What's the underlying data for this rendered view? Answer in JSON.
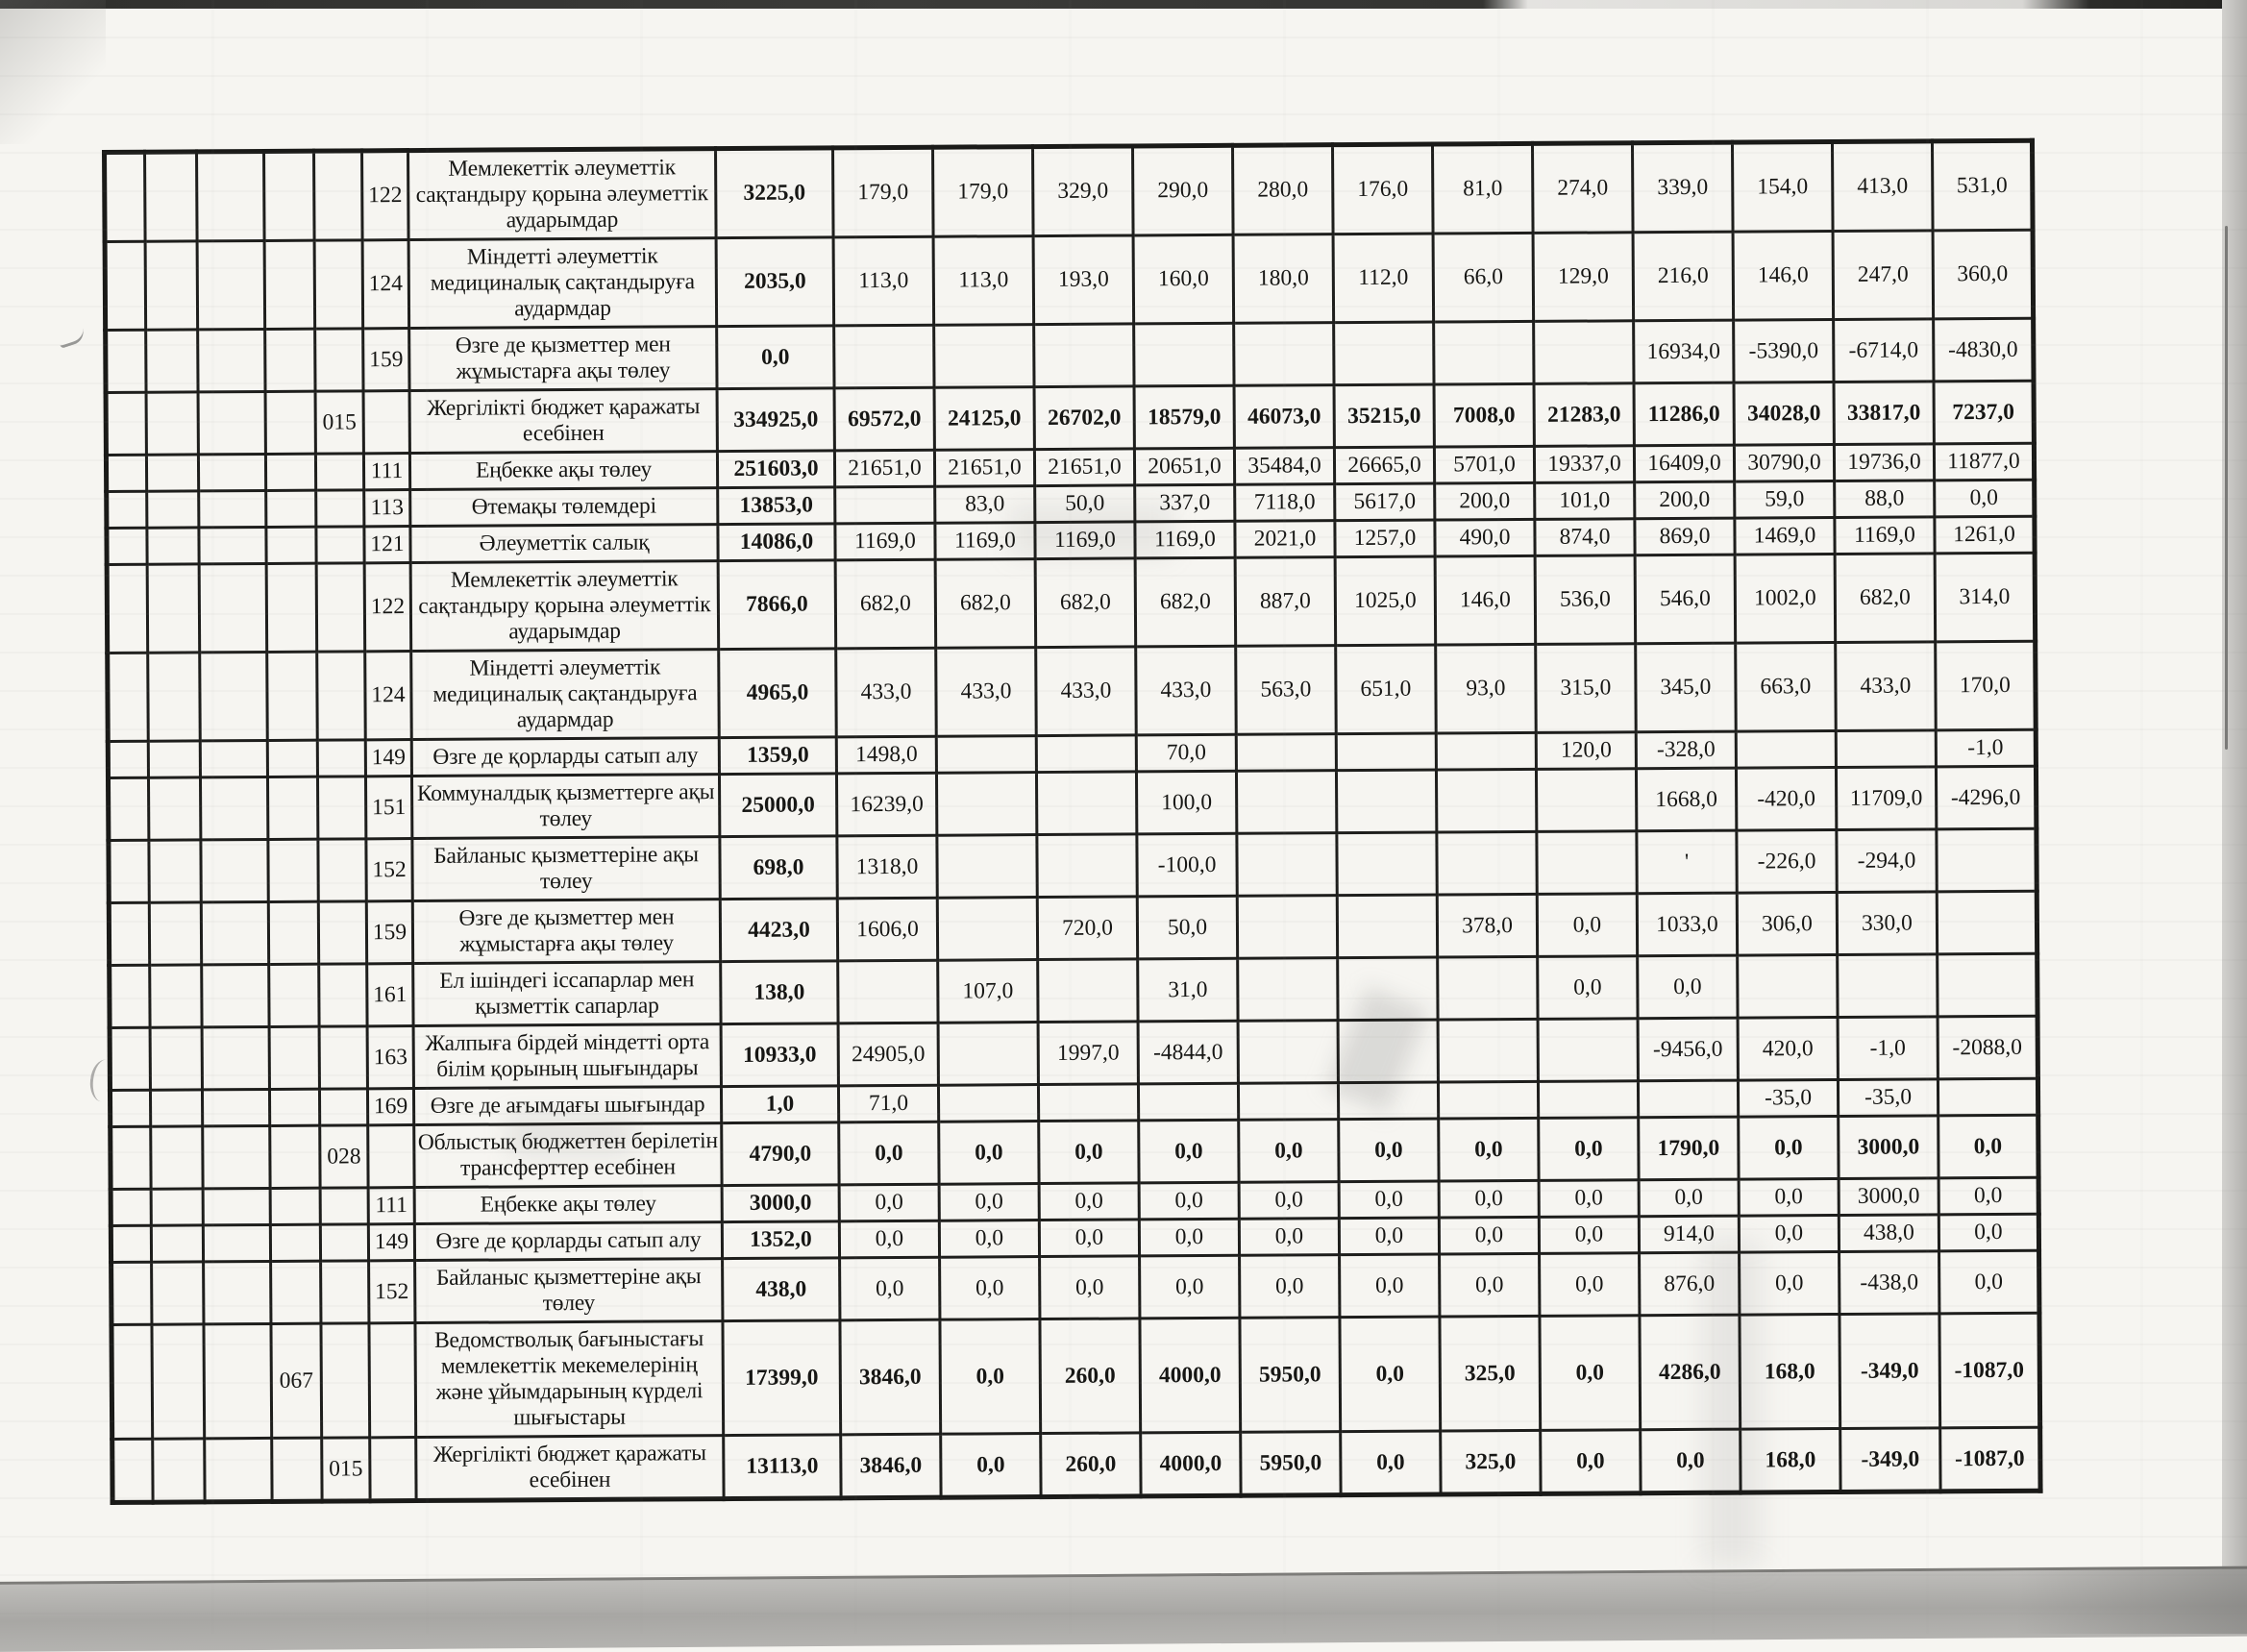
{
  "table": {
    "rows": [
      {
        "program": "",
        "subprogram": "",
        "specific": "122",
        "description": "Мемлекеттік  әлеуметтік сақтандыру қорына әлеуметтік аударымдар",
        "emphasis": "first",
        "values": [
          "3225,0",
          "179,0",
          "179,0",
          "329,0",
          "290,0",
          "280,0",
          "176,0",
          "81,0",
          "274,0",
          "339,0",
          "154,0",
          "413,0",
          "531,0"
        ]
      },
      {
        "program": "",
        "subprogram": "",
        "specific": "124",
        "description": "Міндетті әлеуметтік медициналық сақтандыруға аудармдар",
        "emphasis": "first",
        "values": [
          "2035,0",
          "113,0",
          "113,0",
          "193,0",
          "160,0",
          "180,0",
          "112,0",
          "66,0",
          "129,0",
          "216,0",
          "146,0",
          "247,0",
          "360,0"
        ]
      },
      {
        "program": "",
        "subprogram": "",
        "specific": "159",
        "description": "Өзге де қызметтер мен жұмыстарға ақы төлеу",
        "emphasis": "first",
        "values": [
          "0,0",
          "",
          "",
          "",
          "",
          "",
          "",
          "",
          "",
          "16934,0",
          "-5390,0",
          "-6714,0",
          "-4830,0"
        ]
      },
      {
        "program": "",
        "subprogram": "015",
        "specific": "",
        "description": "Жергілікті бюджет қаражаты есебінен",
        "emphasis": "all",
        "values": [
          "334925,0",
          "69572,0",
          "24125,0",
          "26702,0",
          "18579,0",
          "46073,0",
          "35215,0",
          "7008,0",
          "21283,0",
          "11286,0",
          "34028,0",
          "33817,0",
          "7237,0"
        ]
      },
      {
        "program": "",
        "subprogram": "",
        "specific": "111",
        "description": "Еңбекке ақы төлеу",
        "emphasis": "first",
        "values": [
          "251603,0",
          "21651,0",
          "21651,0",
          "21651,0",
          "20651,0",
          "35484,0",
          "26665,0",
          "5701,0",
          "19337,0",
          "16409,0",
          "30790,0",
          "19736,0",
          "11877,0"
        ]
      },
      {
        "program": "",
        "subprogram": "",
        "specific": "113",
        "description": "Өтемақы төлемдері",
        "emphasis": "first",
        "values": [
          "13853,0",
          "",
          "83,0",
          "50,0",
          "337,0",
          "7118,0",
          "5617,0",
          "200,0",
          "101,0",
          "200,0",
          "59,0",
          "88,0",
          "0,0"
        ]
      },
      {
        "program": "",
        "subprogram": "",
        "specific": "121",
        "description": "Әлеуметтік салық",
        "emphasis": "first",
        "values": [
          "14086,0",
          "1169,0",
          "1169,0",
          "1169,0",
          "1169,0",
          "2021,0",
          "1257,0",
          "490,0",
          "874,0",
          "869,0",
          "1469,0",
          "1169,0",
          "1261,0"
        ]
      },
      {
        "program": "",
        "subprogram": "",
        "specific": "122",
        "description": "Мемлекеттік  әлеуметтік сақтандыру қорына әлеуметтік аударымдар",
        "emphasis": "first",
        "values": [
          "7866,0",
          "682,0",
          "682,0",
          "682,0",
          "682,0",
          "887,0",
          "1025,0",
          "146,0",
          "536,0",
          "546,0",
          "1002,0",
          "682,0",
          "314,0"
        ]
      },
      {
        "program": "",
        "subprogram": "",
        "specific": "124",
        "description": "Міндетті әлеуметтік медициналық сақтандыруға аудармдар",
        "emphasis": "first",
        "values": [
          "4965,0",
          "433,0",
          "433,0",
          "433,0",
          "433,0",
          "563,0",
          "651,0",
          "93,0",
          "315,0",
          "345,0",
          "663,0",
          "433,0",
          "170,0"
        ]
      },
      {
        "program": "",
        "subprogram": "",
        "specific": "149",
        "description": "Өзге де қорларды сатып алу",
        "emphasis": "first",
        "values": [
          "1359,0",
          "1498,0",
          "",
          "",
          "70,0",
          "",
          "",
          "",
          "120,0",
          "-328,0",
          "",
          "",
          "-1,0"
        ]
      },
      {
        "program": "",
        "subprogram": "",
        "specific": "151",
        "description": "Коммуналдық қызметтерге ақы төлеу",
        "emphasis": "first",
        "values": [
          "25000,0",
          "16239,0",
          "",
          "",
          "100,0",
          "",
          "",
          "",
          "",
          "1668,0",
          "-420,0",
          "11709,0",
          "-4296,0"
        ]
      },
      {
        "program": "",
        "subprogram": "",
        "specific": "152",
        "description": "Байланыс қызметтеріне ақы төлеу",
        "emphasis": "first",
        "values": [
          "698,0",
          "1318,0",
          "",
          "",
          "-100,0",
          "",
          "",
          "",
          "",
          "'",
          "-226,0",
          "-294,0",
          ""
        ]
      },
      {
        "program": "",
        "subprogram": "",
        "specific": "159",
        "description": "Өзге де қызметтер мен жұмыстарға ақы төлеу",
        "emphasis": "first",
        "values": [
          "4423,0",
          "1606,0",
          "",
          "720,0",
          "50,0",
          "",
          "",
          "378,0",
          "0,0",
          "1033,0",
          "306,0",
          "330,0",
          ""
        ]
      },
      {
        "program": "",
        "subprogram": "",
        "specific": "161",
        "description": "Ел ішіндегі іссапарлар мен қызметтік сапарлар",
        "emphasis": "first",
        "values": [
          "138,0",
          "",
          "107,0",
          "",
          "31,0",
          "",
          "",
          "",
          "0,0",
          "0,0",
          "",
          "",
          ""
        ]
      },
      {
        "program": "",
        "subprogram": "",
        "specific": "163",
        "description": "Жалпыға бірдей міндетті орта білім қорының шығындары",
        "emphasis": "first",
        "values": [
          "10933,0",
          "24905,0",
          "",
          "1997,0",
          "-4844,0",
          "",
          "",
          "",
          "",
          "-9456,0",
          "420,0",
          "-1,0",
          "-2088,0"
        ]
      },
      {
        "program": "",
        "subprogram": "",
        "specific": "169",
        "description": "Өзге де ағымдағы шығындар",
        "emphasis": "first",
        "values": [
          "1,0",
          "71,0",
          "",
          "",
          "",
          "",
          "",
          "",
          "",
          "",
          "-35,0",
          "-35,0",
          ""
        ]
      },
      {
        "program": "",
        "subprogram": "028",
        "specific": "",
        "description": "Облыстық бюджеттен берілетін трансферттер есебінен",
        "emphasis": "all",
        "values": [
          "4790,0",
          "0,0",
          "0,0",
          "0,0",
          "0,0",
          "0,0",
          "0,0",
          "0,0",
          "0,0",
          "1790,0",
          "0,0",
          "3000,0",
          "0,0"
        ]
      },
      {
        "program": "",
        "subprogram": "",
        "specific": "111",
        "description": "Еңбекке ақы төлеу",
        "emphasis": "first",
        "values": [
          "3000,0",
          "0,0",
          "0,0",
          "0,0",
          "0,0",
          "0,0",
          "0,0",
          "0,0",
          "0,0",
          "0,0",
          "0,0",
          "3000,0",
          "0,0"
        ]
      },
      {
        "program": "",
        "subprogram": "",
        "specific": "149",
        "description": "Өзге де қорларды сатып алу",
        "emphasis": "first",
        "values": [
          "1352,0",
          "0,0",
          "0,0",
          "0,0",
          "0,0",
          "0,0",
          "0,0",
          "0,0",
          "0,0",
          "914,0",
          "0,0",
          "438,0",
          "0,0"
        ]
      },
      {
        "program": "",
        "subprogram": "",
        "specific": "152",
        "description": "Байланыс қызметтеріне ақы төлеу",
        "emphasis": "first",
        "values": [
          "438,0",
          "0,0",
          "0,0",
          "0,0",
          "0,0",
          "0,0",
          "0,0",
          "0,0",
          "0,0",
          "876,0",
          "0,0",
          "-438,0",
          "0,0"
        ]
      },
      {
        "program": "067",
        "subprogram": "",
        "specific": "",
        "description": "Ведомстволық бағыныстағы мемлекеттік мекемелерінің және ұйымдарының күрделі шығыстары",
        "emphasis": "all",
        "values": [
          "17399,0",
          "3846,0",
          "0,0",
          "260,0",
          "4000,0",
          "5950,0",
          "0,0",
          "325,0",
          "0,0",
          "4286,0",
          "168,0",
          "-349,0",
          "-1087,0"
        ]
      },
      {
        "program": "",
        "subprogram": "015",
        "specific": "",
        "description": "Жергілікті бюджет қаражаты есебінен",
        "emphasis": "all",
        "values": [
          "13113,0",
          "3846,0",
          "0,0",
          "260,0",
          "4000,0",
          "5950,0",
          "0,0",
          "325,0",
          "0,0",
          "0,0",
          "168,0",
          "-349,0",
          "-1087,0"
        ]
      }
    ]
  }
}
